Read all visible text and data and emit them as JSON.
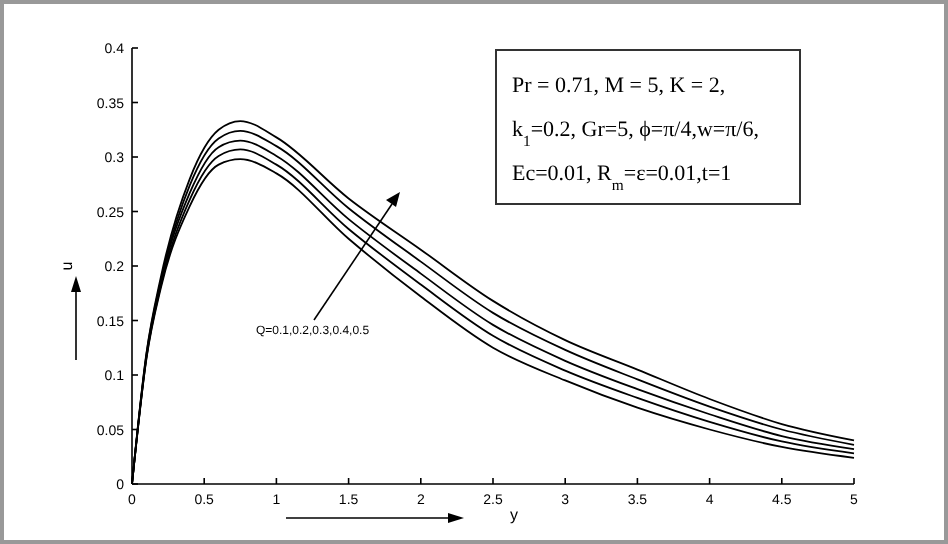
{
  "chart_data": {
    "type": "line",
    "xlabel": "y",
    "ylabel": "u",
    "x": [
      0,
      0.1,
      0.2,
      0.4,
      0.6,
      0.75,
      1,
      1.5,
      2,
      2.5,
      3,
      3.5,
      4,
      4.5,
      5
    ],
    "series": [
      {
        "color": "#000000",
        "values": [
          0,
          0.115,
          0.18,
          0.255,
          0.293,
          0.298,
          0.285,
          0.225,
          0.172,
          0.125,
          0.095,
          0.07,
          0.05,
          0.034,
          0.024
        ]
      },
      {
        "color": "#000000",
        "values": [
          0,
          0.116,
          0.182,
          0.261,
          0.301,
          0.307,
          0.293,
          0.234,
          0.183,
          0.136,
          0.104,
          0.079,
          0.057,
          0.039,
          0.028
        ]
      },
      {
        "color": "#000000",
        "values": [
          0,
          0.117,
          0.185,
          0.267,
          0.309,
          0.315,
          0.301,
          0.243,
          0.193,
          0.146,
          0.113,
          0.087,
          0.064,
          0.044,
          0.032
        ]
      },
      {
        "color": "#000000",
        "values": [
          0,
          0.119,
          0.187,
          0.274,
          0.317,
          0.324,
          0.31,
          0.253,
          0.204,
          0.157,
          0.123,
          0.096,
          0.071,
          0.05,
          0.036
        ]
      },
      {
        "color": "#000000",
        "values": [
          0,
          0.12,
          0.19,
          0.28,
          0.325,
          0.333,
          0.318,
          0.262,
          0.215,
          0.168,
          0.132,
          0.105,
          0.078,
          0.055,
          0.04
        ]
      }
    ],
    "xlim": [
      0,
      5
    ],
    "xticks": [
      0,
      0.5,
      1,
      1.5,
      2,
      2.5,
      3,
      3.5,
      4,
      4.5,
      5
    ],
    "ylim": [
      0,
      0.4
    ],
    "yticks": [
      0,
      0.05,
      0.1,
      0.15,
      0.2,
      0.25,
      0.3,
      0.35,
      0.4
    ],
    "grid": false,
    "marker": "none",
    "line_style": "solid",
    "annotations": [
      "Q=0.1,0.2,0.3,0.4,0.5",
      "Pr = 0.71, M = 5, K  = 2,",
      "k$_{1}$=0.2, Gr=5, ϕ=π/4,w=π/6,",
      "Ec=0.01, R$_{m}$=ε=0.01,t=1"
    ]
  }
}
